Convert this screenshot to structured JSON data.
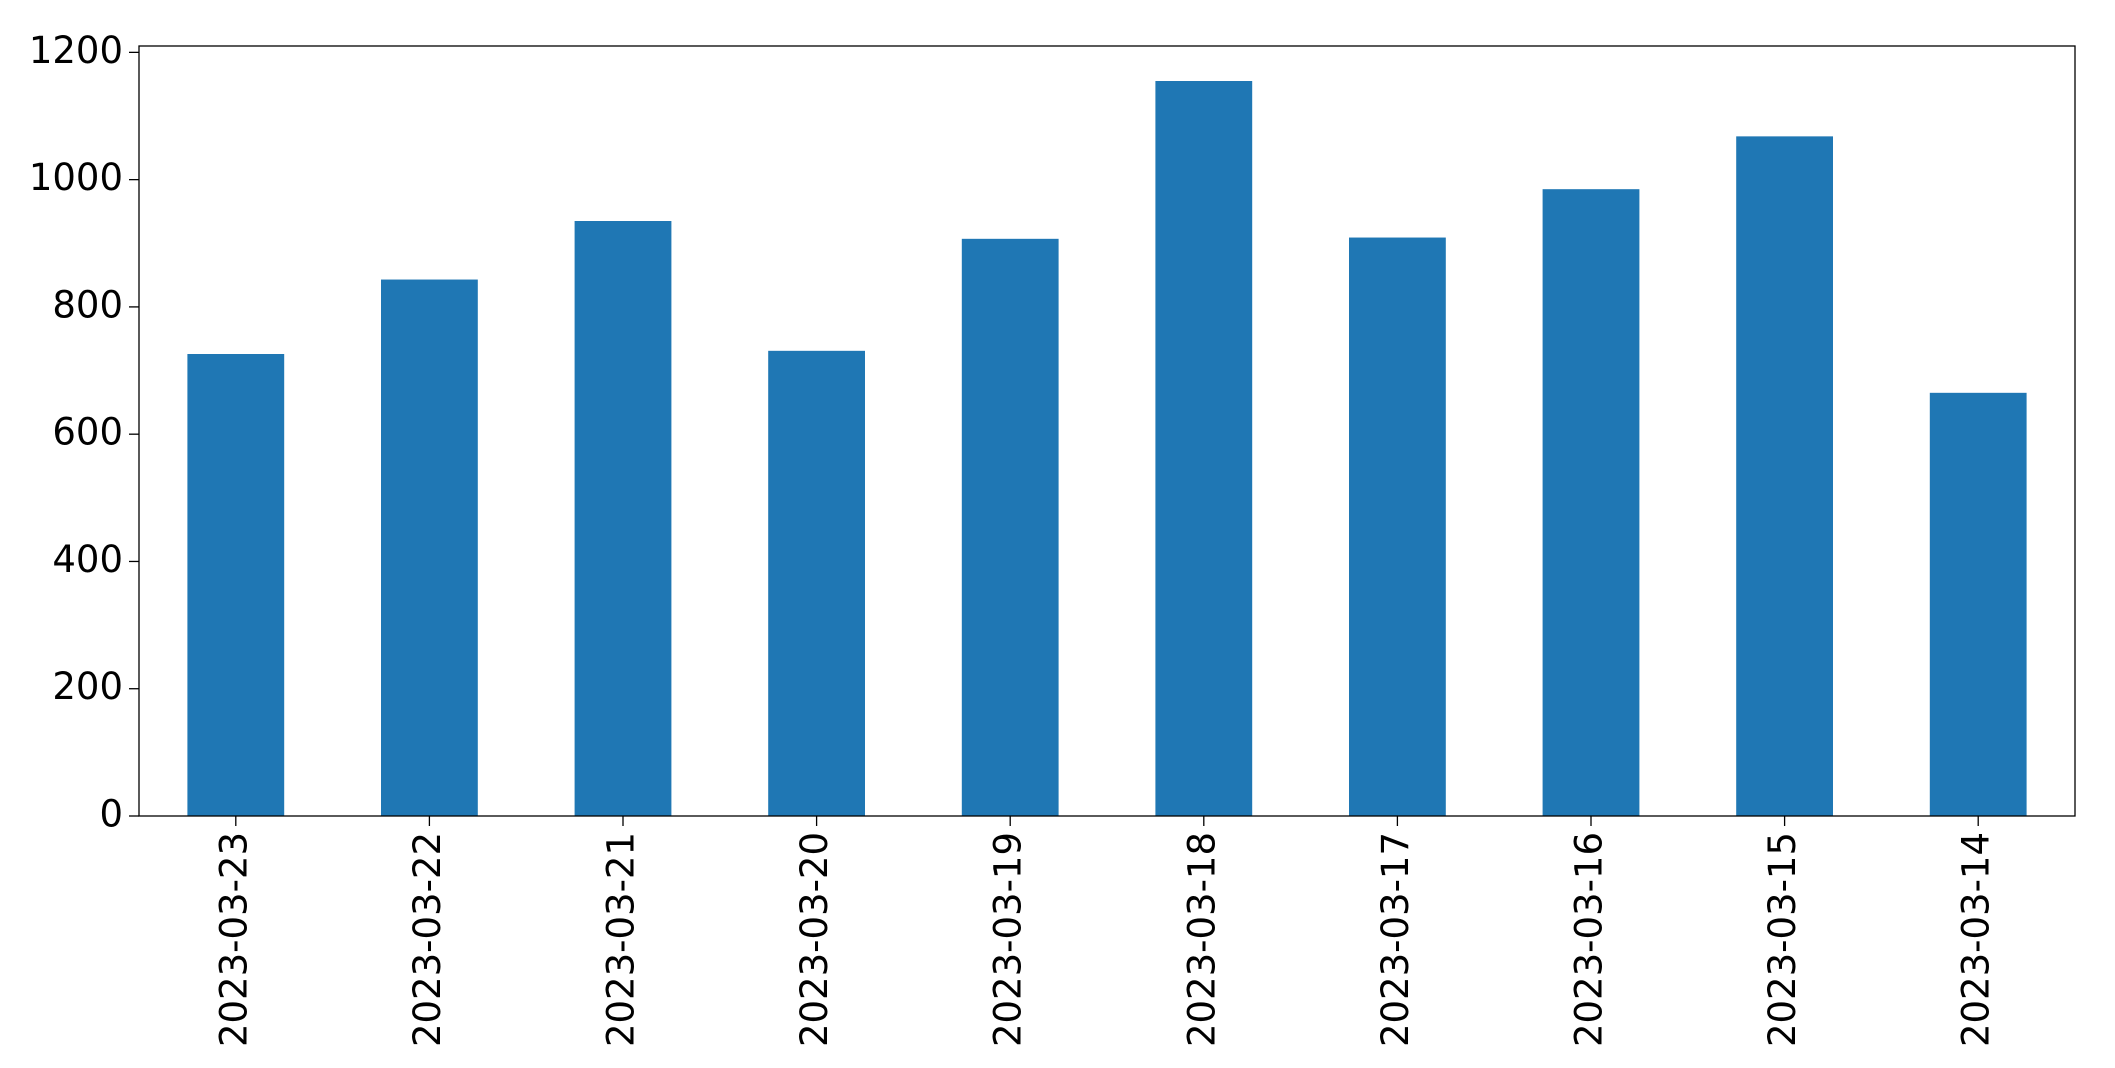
{
  "chart_data": {
    "type": "bar",
    "categories": [
      "2023-03-23",
      "2023-03-22",
      "2023-03-21",
      "2023-03-20",
      "2023-03-19",
      "2023-03-18",
      "2023-03-17",
      "2023-03-16",
      "2023-03-15",
      "2023-03-14"
    ],
    "values": [
      726,
      843,
      935,
      731,
      907,
      1155,
      909,
      985,
      1068,
      665
    ],
    "color": "#1f77b4",
    "ylim": [
      0,
      1210
    ],
    "yticks": [
      0,
      200,
      400,
      600,
      800,
      1000,
      1200
    ],
    "grid": false
  }
}
